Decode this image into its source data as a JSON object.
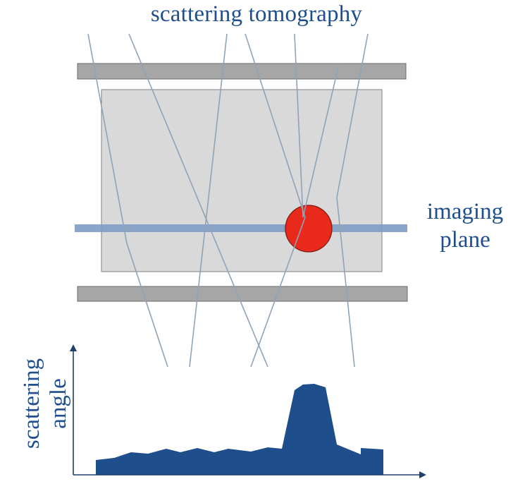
{
  "title": "scattering tomography",
  "imaging_plane_label": {
    "line1": "imaging",
    "line2": "plane"
  },
  "axis_label": {
    "line1": "scattering",
    "line2": "angle"
  },
  "colors": {
    "text": "#1f4e8c",
    "detector": "#a6a6a6",
    "detector_edge": "#6b6b6b",
    "volume": "#d9d9d9",
    "volume_edge": "#7f7f7f",
    "imaging_plane": "#7f9cc4",
    "object": "#e8291c",
    "object_edge": "#7a1a10",
    "track": "#8fa3b8",
    "profile": "#1f4e8c",
    "axis": "#1f3f6e"
  }
}
